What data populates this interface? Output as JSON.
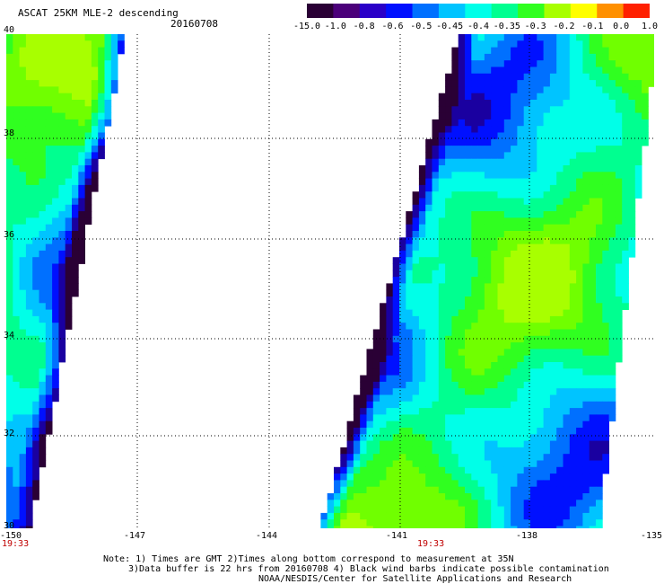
{
  "header": {
    "title": "ASCAT 25KM MLE-2 descending",
    "date": "20160708"
  },
  "colorbar": {
    "labels": [
      "-15.0",
      "-1.0",
      "-0.8",
      "-0.6",
      "-0.5",
      "-0.45",
      "-0.4",
      "-0.35",
      "-0.3",
      "-0.2",
      "-0.1",
      "0.0",
      "1.0"
    ],
    "colors": [
      "#2a0035",
      "#4b007a",
      "#2a00c8",
      "#0010ff",
      "#0070ff",
      "#00c4ff",
      "#00ffe8",
      "#00ff90",
      "#30ff20",
      "#a8ff00",
      "#ffff00",
      "#ff9000",
      "#ff2000"
    ]
  },
  "map": {
    "lon_labels": [
      "-150",
      "-147",
      "-144",
      "-141",
      "-138",
      "-135"
    ],
    "lat_labels": [
      "40",
      "38",
      "36",
      "34",
      "32",
      "30"
    ],
    "lon_range": [
      -150,
      -135
    ],
    "lat_range": [
      30,
      40
    ],
    "gridlines": true,
    "time_labels": [
      "19:33",
      "19:33"
    ]
  },
  "footer": {
    "line1": "Note: 1) Times are GMT 2)Times along bottom correspond to measurement at 35N",
    "line2": "3)Data buffer is 22 hrs from 20160708 4) Black wind barbs indicate possible contamination",
    "line3": "NOAA/NESDIS/Center for Satellite Applications and Research"
  }
}
